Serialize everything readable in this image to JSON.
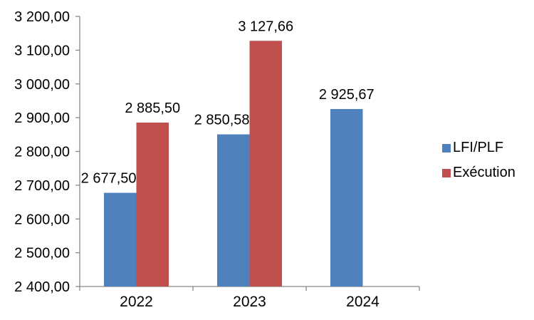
{
  "chart_data": {
    "type": "bar",
    "title": "",
    "xlabel": "",
    "ylabel": "",
    "categories": [
      "2022",
      "2023",
      "2024"
    ],
    "series": [
      {
        "name": "LFI/PLF",
        "color": "#4F81BD",
        "values": [
          2677.5,
          2850.58,
          2925.67
        ],
        "labels": [
          "2 677,50",
          "2 850,58",
          "2 925,67"
        ],
        "label_anchor": [
          "end",
          "end",
          "middle"
        ]
      },
      {
        "name": "Exécution",
        "color": "#C0504D",
        "values": [
          2885.5,
          3127.66,
          null
        ],
        "labels": [
          "2 885,50",
          "3 127,66",
          ""
        ],
        "label_anchor": [
          "middle",
          "middle",
          "middle"
        ]
      }
    ],
    "y_axis": {
      "min": 2400,
      "max": 3200,
      "step": 100,
      "tick_labels": [
        "2 400,00",
        "2 500,00",
        "2 600,00",
        "2 700,00",
        "2 800,00",
        "2 900,00",
        "3 000,00",
        "3 100,00",
        "3 200,00"
      ]
    },
    "ylim": [
      2400,
      3200
    ],
    "grid": false,
    "legend_position": "right",
    "axis_color": "#898989",
    "text_color": "#000000",
    "background_color": "#FFFFFF"
  }
}
